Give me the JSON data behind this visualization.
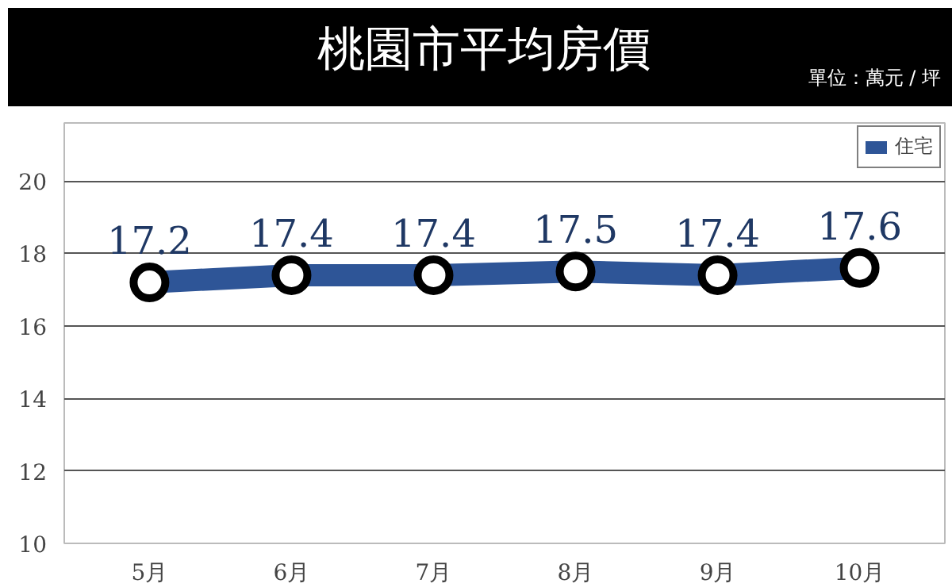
{
  "chart_data": {
    "type": "line",
    "title": "桃園市平均房價",
    "subtitle": "單位：萬元 / 坪",
    "categories": [
      "5月",
      "6月",
      "7月",
      "8月",
      "9月",
      "10月"
    ],
    "series": [
      {
        "name": "住宅",
        "color": "#2e5597",
        "values": [
          17.2,
          17.4,
          17.4,
          17.5,
          17.4,
          17.6
        ]
      }
    ],
    "ylim": [
      10,
      21.6
    ],
    "yticks": [
      10,
      12,
      14,
      16,
      18,
      20
    ],
    "grid": "y",
    "legend": "top right",
    "marker": "circle",
    "data_labels": true
  }
}
